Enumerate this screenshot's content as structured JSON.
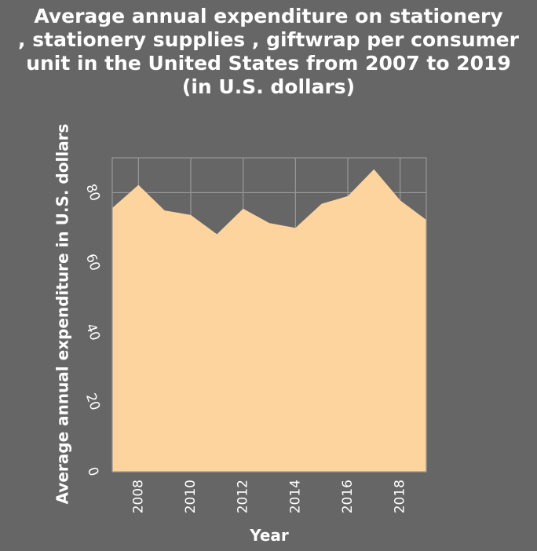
{
  "chart_data": {
    "type": "area",
    "title": "Average annual expenditure on stationery\n, stationery supplies , giftwrap per consumer\nunit in the United States from 2007 to 2019\n(in U.S. dollars)",
    "xlabel": "Year",
    "ylabel": "Average annual expenditure in U.S. dollars",
    "x": [
      2007,
      2008,
      2009,
      2010,
      2011,
      2012,
      2013,
      2014,
      2015,
      2016,
      2017,
      2018,
      2019
    ],
    "values": [
      75.6,
      82.2,
      74.9,
      73.6,
      68.1,
      75.4,
      71.3,
      69.9,
      76.8,
      79.0,
      86.7,
      77.8,
      72.2
    ],
    "xticks": [
      "2008",
      "2010",
      "2012",
      "2014",
      "2016",
      "2018"
    ],
    "yticks": [
      "0",
      "20",
      "40",
      "60",
      "80"
    ],
    "xlim": [
      2007,
      2019
    ],
    "ylim": [
      0,
      90
    ],
    "grid": true,
    "colors": {
      "fill": "#fdd49e",
      "background": "#666666",
      "grid": "#999999"
    }
  }
}
